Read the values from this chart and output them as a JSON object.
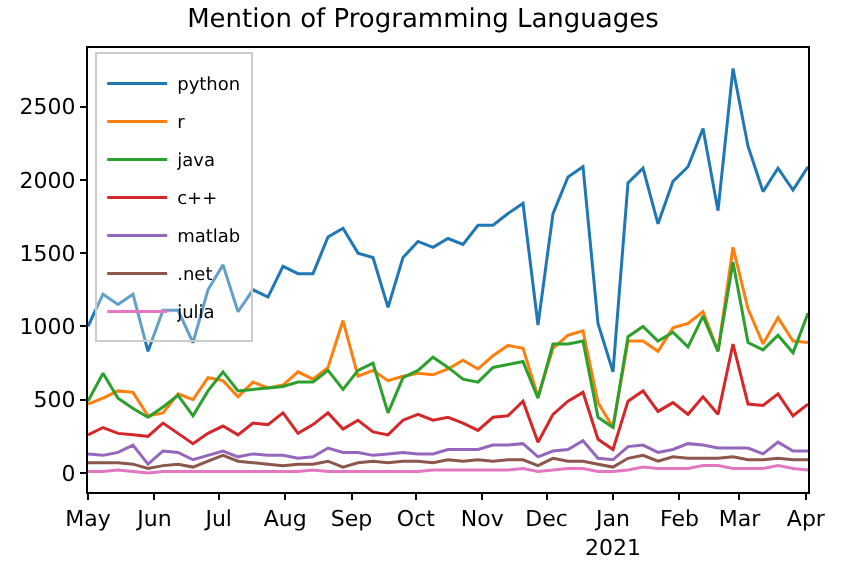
{
  "chart_data": {
    "type": "line",
    "title": "Mention of Programming Languages",
    "x": [
      "2020-05-01",
      "2020-05-08",
      "2020-05-15",
      "2020-05-22",
      "2020-05-29",
      "2020-06-05",
      "2020-06-12",
      "2020-06-19",
      "2020-06-26",
      "2020-07-03",
      "2020-07-10",
      "2020-07-17",
      "2020-07-24",
      "2020-07-31",
      "2020-08-07",
      "2020-08-14",
      "2020-08-21",
      "2020-08-28",
      "2020-09-04",
      "2020-09-11",
      "2020-09-18",
      "2020-09-25",
      "2020-10-02",
      "2020-10-09",
      "2020-10-16",
      "2020-10-23",
      "2020-10-30",
      "2020-11-06",
      "2020-11-13",
      "2020-11-20",
      "2020-11-27",
      "2020-12-04",
      "2020-12-11",
      "2020-12-18",
      "2020-12-25",
      "2021-01-01",
      "2021-01-08",
      "2021-01-15",
      "2021-01-22",
      "2021-01-29",
      "2021-02-05",
      "2021-02-12",
      "2021-02-19",
      "2021-02-26",
      "2021-03-05",
      "2021-03-12",
      "2021-03-19",
      "2021-03-26",
      "2021-04-02"
    ],
    "xlim": [
      "2020-05-01",
      "2021-04-02"
    ],
    "xticks": [
      {
        "value": "2020-05-01",
        "label": "May"
      },
      {
        "value": "2020-06-01",
        "label": "Jun"
      },
      {
        "value": "2020-07-01",
        "label": "Jul"
      },
      {
        "value": "2020-08-01",
        "label": "Aug"
      },
      {
        "value": "2020-09-01",
        "label": "Sep"
      },
      {
        "value": "2020-10-01",
        "label": "Oct"
      },
      {
        "value": "2020-11-01",
        "label": "Nov"
      },
      {
        "value": "2020-12-01",
        "label": "Dec"
      },
      {
        "value": "2021-01-01",
        "label": "Jan\n2021"
      },
      {
        "value": "2021-02-01",
        "label": "Feb"
      },
      {
        "value": "2021-03-01",
        "label": "Mar"
      },
      {
        "value": "2021-04-01",
        "label": "Apr"
      }
    ],
    "ylim": [
      -130,
      2900
    ],
    "yticks": [
      0,
      500,
      1000,
      1500,
      2000,
      2500
    ],
    "legend": "top left",
    "series": [
      {
        "name": "python",
        "color": "#1f77b4",
        "values": [
          1000,
          1220,
          1150,
          1220,
          830,
          1110,
          1110,
          890,
          1250,
          1420,
          1100,
          1250,
          1200,
          1410,
          1360,
          1360,
          1610,
          1670,
          1500,
          1470,
          1130,
          1470,
          1580,
          1540,
          1600,
          1560,
          1690,
          1690,
          1770,
          1840,
          1010,
          1770,
          2020,
          2090,
          1020,
          690,
          1980,
          2080,
          1700,
          1990,
          2090,
          2350,
          1790,
          2760,
          2230,
          1920,
          2080,
          1930,
          2090
        ]
      },
      {
        "name": "r",
        "color": "#ff7f0e",
        "values": [
          470,
          510,
          560,
          550,
          390,
          410,
          540,
          500,
          650,
          630,
          520,
          620,
          580,
          600,
          690,
          640,
          720,
          1040,
          660,
          700,
          630,
          660,
          680,
          670,
          710,
          770,
          710,
          800,
          870,
          850,
          520,
          850,
          940,
          970,
          480,
          310,
          900,
          900,
          830,
          990,
          1020,
          1100,
          830,
          1540,
          1120,
          880,
          1060,
          900,
          890
        ]
      },
      {
        "name": "java",
        "color": "#2ca02c",
        "values": [
          490,
          680,
          510,
          440,
          380,
          450,
          530,
          390,
          560,
          690,
          560,
          570,
          580,
          590,
          620,
          620,
          700,
          570,
          700,
          750,
          410,
          650,
          700,
          790,
          720,
          640,
          620,
          720,
          740,
          760,
          510,
          880,
          880,
          900,
          380,
          310,
          930,
          1000,
          900,
          960,
          860,
          1070,
          830,
          1440,
          890,
          840,
          940,
          820,
          1090
        ]
      },
      {
        "name": "c++",
        "color": "#d62728",
        "values": [
          260,
          310,
          270,
          260,
          250,
          340,
          270,
          200,
          270,
          320,
          260,
          340,
          330,
          410,
          270,
          330,
          410,
          300,
          360,
          280,
          260,
          360,
          400,
          360,
          380,
          340,
          290,
          380,
          390,
          490,
          210,
          400,
          490,
          550,
          230,
          160,
          490,
          560,
          420,
          480,
          400,
          520,
          400,
          880,
          470,
          460,
          540,
          390,
          470
        ]
      },
      {
        "name": "matlab",
        "color": "#9467bd",
        "values": [
          130,
          120,
          140,
          190,
          60,
          150,
          140,
          90,
          120,
          150,
          110,
          130,
          120,
          120,
          100,
          110,
          170,
          140,
          140,
          120,
          130,
          140,
          130,
          130,
          160,
          160,
          160,
          190,
          190,
          200,
          110,
          150,
          160,
          220,
          100,
          90,
          180,
          190,
          140,
          160,
          200,
          190,
          170,
          170,
          170,
          130,
          210,
          150,
          150
        ]
      },
      {
        "name": ".net",
        "color": "#8c564b",
        "values": [
          70,
          70,
          70,
          60,
          30,
          50,
          60,
          40,
          80,
          120,
          80,
          70,
          60,
          50,
          60,
          60,
          80,
          40,
          70,
          80,
          70,
          80,
          80,
          70,
          90,
          80,
          90,
          80,
          90,
          90,
          50,
          100,
          80,
          80,
          60,
          40,
          100,
          120,
          80,
          110,
          100,
          100,
          100,
          110,
          90,
          90,
          100,
          90,
          90
        ]
      },
      {
        "name": "julia",
        "color": "#e377c2",
        "values": [
          10,
          10,
          20,
          10,
          0,
          10,
          10,
          10,
          10,
          10,
          10,
          10,
          10,
          10,
          10,
          20,
          10,
          10,
          10,
          10,
          10,
          10,
          10,
          20,
          20,
          20,
          20,
          20,
          20,
          30,
          10,
          20,
          30,
          30,
          10,
          10,
          20,
          40,
          30,
          30,
          30,
          50,
          50,
          30,
          30,
          30,
          50,
          30,
          20
        ]
      }
    ]
  }
}
